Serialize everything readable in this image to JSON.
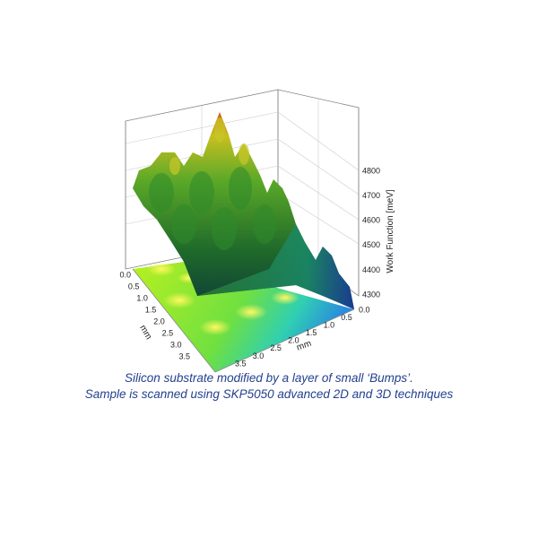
{
  "figure": {
    "z_axis_label": "Work Function [meV]",
    "z_ticks": [
      "4300",
      "4400",
      "4500",
      "4600",
      "4700",
      "4800"
    ],
    "y_axis_label": "mm",
    "y_ticks": [
      "0.0",
      "0.5",
      "1.0",
      "1.5",
      "2.0",
      "2.5",
      "3.0",
      "3.5"
    ],
    "x_axis_label": "mm",
    "x_ticks": [
      "0.0",
      "0.5",
      "1.0",
      "1.5",
      "2.0",
      "2.5",
      "3.0",
      "3.5"
    ]
  },
  "caption": [
    "Silicon substrate modified by a layer of small ‘Bumps’.",
    "Sample is scanned using SKP5050 advanced 2D and 3D techniques"
  ]
}
